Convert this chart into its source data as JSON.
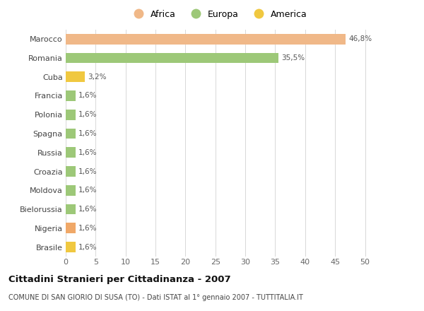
{
  "categories": [
    "Brasile",
    "Nigeria",
    "Bielorussia",
    "Moldova",
    "Croazia",
    "Russia",
    "Spagna",
    "Polonia",
    "Francia",
    "Cuba",
    "Romania",
    "Marocco"
  ],
  "values": [
    1.6,
    1.6,
    1.6,
    1.6,
    1.6,
    1.6,
    1.6,
    1.6,
    1.6,
    3.2,
    35.5,
    46.8
  ],
  "colors": [
    "#f0c840",
    "#f0a868",
    "#9dc878",
    "#9dc878",
    "#9dc878",
    "#9dc878",
    "#9dc878",
    "#9dc878",
    "#9dc878",
    "#f0c840",
    "#9dc878",
    "#f0b888"
  ],
  "labels": [
    "1,6%",
    "1,6%",
    "1,6%",
    "1,6%",
    "1,6%",
    "1,6%",
    "1,6%",
    "1,6%",
    "1,6%",
    "3,2%",
    "35,5%",
    "46,8%"
  ],
  "legend": [
    {
      "label": "Africa",
      "color": "#f0b888"
    },
    {
      "label": "Europa",
      "color": "#9dc878"
    },
    {
      "label": "America",
      "color": "#f0c840"
    }
  ],
  "title": "Cittadini Stranieri per Cittadinanza - 2007",
  "subtitle": "COMUNE DI SAN GIORIO DI SUSA (TO) - Dati ISTAT al 1° gennaio 2007 - TUTTITALIA.IT",
  "xlabel_ticks": [
    0,
    5,
    10,
    15,
    20,
    25,
    30,
    35,
    40,
    45,
    50
  ],
  "xlim": [
    0,
    51
  ],
  "background_color": "#ffffff",
  "grid_color": "#d8d8d8",
  "bar_height": 0.55
}
